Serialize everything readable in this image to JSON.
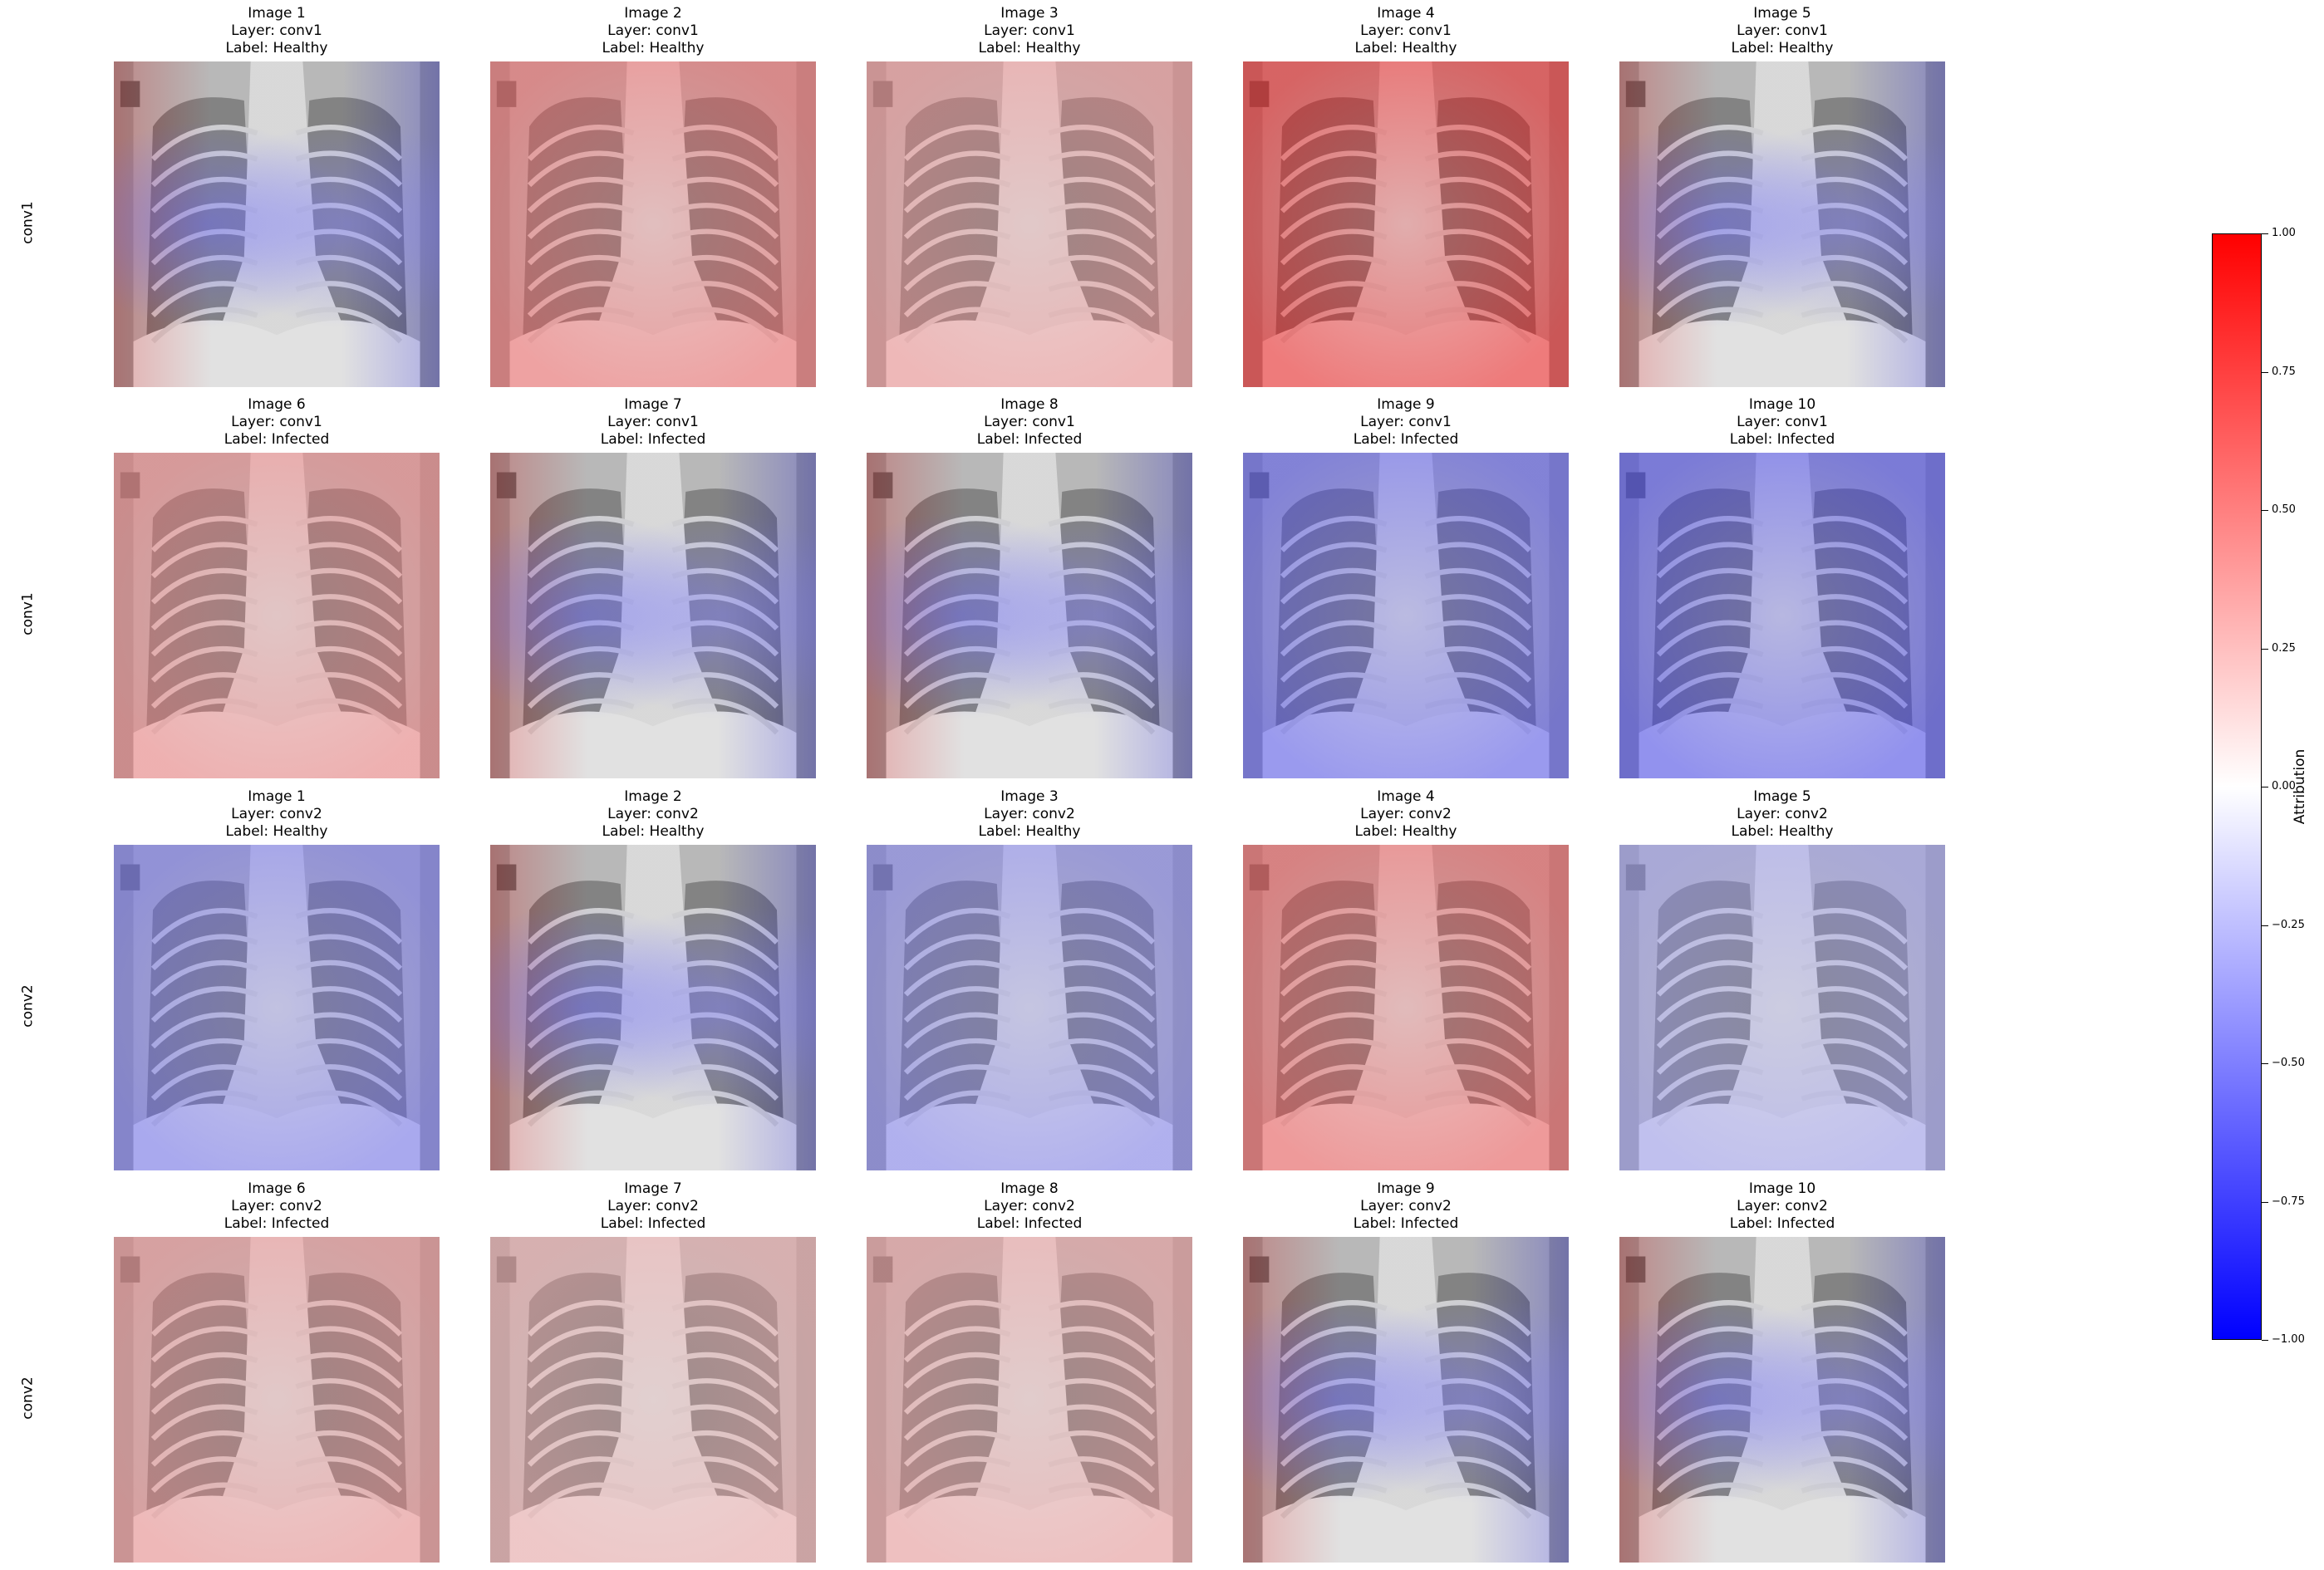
{
  "figure": {
    "colormap": {
      "name": "bwr",
      "top_color": "#ff0000",
      "mid_color": "#ffffff",
      "bottom_color": "#0000ff"
    },
    "colorbar": {
      "label": "Attribution",
      "ticks": [
        "1.00",
        "0.75",
        "0.50",
        "0.25",
        "0.00",
        "−0.25",
        "−0.50",
        "−0.75",
        "−1.00"
      ],
      "tick_values": [
        1.0,
        0.75,
        0.5,
        0.25,
        0.0,
        -0.25,
        -0.5,
        -0.75,
        -1.0
      ]
    },
    "row_labels": [
      "conv1",
      "conv1",
      "conv2",
      "conv2"
    ],
    "panels": [
      {
        "image": "Image 1",
        "layer": "Layer: conv1",
        "label": "Label: Healthy",
        "tone": "mixed",
        "attribution": 0.0
      },
      {
        "image": "Image 2",
        "layer": "Layer: conv1",
        "label": "Label: Healthy",
        "tone": "red",
        "attribution": 0.5
      },
      {
        "image": "Image 3",
        "layer": "Layer: conv1",
        "label": "Label: Healthy",
        "tone": "red",
        "attribution": 0.35
      },
      {
        "image": "Image 4",
        "layer": "Layer: conv1",
        "label": "Label: Healthy",
        "tone": "red",
        "attribution": 0.75
      },
      {
        "image": "Image 5",
        "layer": "Layer: conv1",
        "label": "Label: Healthy",
        "tone": "mixed",
        "attribution": 0.05
      },
      {
        "image": "Image 6",
        "layer": "Layer: conv1",
        "label": "Label: Infected",
        "tone": "red",
        "attribution": 0.4
      },
      {
        "image": "Image 7",
        "layer": "Layer: conv1",
        "label": "Label: Infected",
        "tone": "mixed",
        "attribution": -0.2
      },
      {
        "image": "Image 8",
        "layer": "Layer: conv1",
        "label": "Label: Infected",
        "tone": "mixed",
        "attribution": 0.1
      },
      {
        "image": "Image 9",
        "layer": "Layer: conv1",
        "label": "Label: Infected",
        "tone": "blue",
        "attribution": -0.55
      },
      {
        "image": "Image 10",
        "layer": "Layer: conv1",
        "label": "Label: Infected",
        "tone": "blue",
        "attribution": -0.6
      },
      {
        "image": "Image 1",
        "layer": "Layer: conv2",
        "label": "Label: Healthy",
        "tone": "blue",
        "attribution": -0.45
      },
      {
        "image": "Image 2",
        "layer": "Layer: conv2",
        "label": "Label: Healthy",
        "tone": "mixed",
        "attribution": 0.0
      },
      {
        "image": "Image 3",
        "layer": "Layer: conv2",
        "label": "Label: Healthy",
        "tone": "blue",
        "attribution": -0.4
      },
      {
        "image": "Image 4",
        "layer": "Layer: conv2",
        "label": "Label: Healthy",
        "tone": "red",
        "attribution": 0.55
      },
      {
        "image": "Image 5",
        "layer": "Layer: conv2",
        "label": "Label: Healthy",
        "tone": "blue",
        "attribution": -0.3
      },
      {
        "image": "Image 6",
        "layer": "Layer: conv2",
        "label": "Label: Infected",
        "tone": "red",
        "attribution": 0.35
      },
      {
        "image": "Image 7",
        "layer": "Layer: conv2",
        "label": "Label: Infected",
        "tone": "red",
        "attribution": 0.25
      },
      {
        "image": "Image 8",
        "layer": "Layer: conv2",
        "label": "Label: Infected",
        "tone": "red",
        "attribution": 0.3
      },
      {
        "image": "Image 9",
        "layer": "Layer: conv2",
        "label": "Label: Infected",
        "tone": "mixed",
        "attribution": -0.2
      },
      {
        "image": "Image 10",
        "layer": "Layer: conv2",
        "label": "Label: Infected",
        "tone": "mixed",
        "attribution": 0.05
      }
    ]
  }
}
